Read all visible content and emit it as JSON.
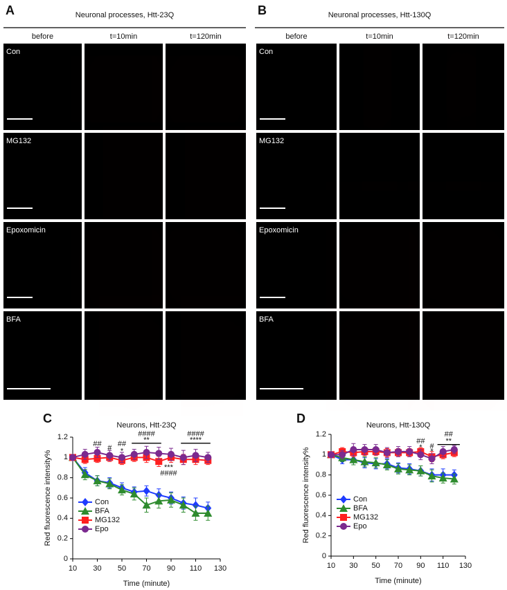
{
  "panels": [
    {
      "label": "A",
      "title": "Neuronal processes, Htt-23Q",
      "columns": [
        "before",
        "t=10min",
        "t=120min"
      ],
      "rows": [
        "Con",
        "MG132",
        "Epoxomicin",
        "BFA"
      ]
    },
    {
      "label": "B",
      "title": "Neuronal processes, Htt-130Q",
      "columns": [
        "before",
        "t=10min",
        "t=120min"
      ],
      "rows": [
        "Con",
        "MG132",
        "Epoxomicin",
        "BFA"
      ]
    }
  ],
  "chart_data": [
    {
      "type": "line",
      "panel_label": "C",
      "title": "Neurons, Htt-23Q",
      "x_label": "Time (minute)",
      "y_label": "Red fluorescence intensity%",
      "x": [
        10,
        20,
        30,
        40,
        50,
        60,
        70,
        80,
        90,
        100,
        110,
        120
      ],
      "series": [
        {
          "name": "Con",
          "color": "#1f3cff",
          "marker": "diamond",
          "values": [
            1,
            0.85,
            0.77,
            0.75,
            0.7,
            0.66,
            0.67,
            0.63,
            0.6,
            0.55,
            0.53,
            0.5
          ],
          "errors": [
            0.02,
            0.05,
            0.05,
            0.05,
            0.05,
            0.05,
            0.05,
            0.06,
            0.06,
            0.06,
            0.07,
            0.06
          ]
        },
        {
          "name": "BFA",
          "color": "#2e8b2e",
          "marker": "triangle",
          "values": [
            1,
            0.83,
            0.77,
            0.74,
            0.68,
            0.64,
            0.53,
            0.57,
            0.58,
            0.53,
            0.45,
            0.45
          ],
          "errors": [
            0.02,
            0.05,
            0.05,
            0.05,
            0.05,
            0.06,
            0.07,
            0.07,
            0.07,
            0.07,
            0.07,
            0.07
          ]
        },
        {
          "name": "MG132",
          "color": "#ff2020",
          "marker": "square",
          "values": [
            1,
            0.98,
            0.99,
            1.0,
            0.97,
            1.0,
            1.0,
            0.96,
            1.0,
            0.98,
            0.98,
            0.97
          ],
          "errors": [
            0.02,
            0.04,
            0.04,
            0.04,
            0.04,
            0.04,
            0.05,
            0.05,
            0.05,
            0.05,
            0.05,
            0.04
          ]
        },
        {
          "name": "Epo",
          "color": "#7b2a8f",
          "marker": "circle",
          "values": [
            1,
            1.03,
            1.05,
            1.02,
            1.0,
            1.03,
            1.05,
            1.04,
            1.03,
            1.0,
            1.02,
            1.0
          ],
          "errors": [
            0.02,
            0.05,
            0.05,
            0.05,
            0.05,
            0.05,
            0.06,
            0.06,
            0.06,
            0.07,
            0.06,
            0.05
          ]
        }
      ],
      "annotations": [
        "##",
        "#",
        "##",
        "*",
        "####",
        "**",
        "***",
        "####",
        "####",
        "****"
      ],
      "xlim": [
        10,
        130
      ],
      "xticks": [
        10,
        30,
        50,
        70,
        90,
        110,
        130
      ],
      "ylim": [
        0,
        1.2
      ],
      "yticks": [
        0,
        0.2,
        0.4,
        0.6,
        0.8,
        1,
        1.2
      ],
      "legend": "lower left"
    },
    {
      "type": "line",
      "panel_label": "D",
      "title": "Neurons, Htt-130Q",
      "x_label": "Time (minute)",
      "y_label": "Red fluorescence intensity%",
      "x": [
        10,
        20,
        30,
        40,
        50,
        60,
        70,
        80,
        90,
        100,
        110,
        120
      ],
      "series": [
        {
          "name": "Con",
          "color": "#1f3cff",
          "marker": "diamond",
          "values": [
            1,
            0.95,
            0.95,
            0.92,
            0.91,
            0.91,
            0.87,
            0.86,
            0.84,
            0.8,
            0.8,
            0.8
          ],
          "errors": [
            0.02,
            0.04,
            0.05,
            0.05,
            0.05,
            0.05,
            0.05,
            0.05,
            0.05,
            0.06,
            0.06,
            0.05
          ]
        },
        {
          "name": "BFA",
          "color": "#2e8b2e",
          "marker": "triangle",
          "values": [
            1,
            0.97,
            0.95,
            0.93,
            0.92,
            0.9,
            0.86,
            0.85,
            0.84,
            0.79,
            0.77,
            0.76
          ],
          "errors": [
            0.02,
            0.04,
            0.05,
            0.05,
            0.05,
            0.05,
            0.05,
            0.05,
            0.05,
            0.06,
            0.05,
            0.05
          ]
        },
        {
          "name": "MG132",
          "color": "#ff2020",
          "marker": "square",
          "values": [
            1,
            1.03,
            1.02,
            1.03,
            1.03,
            1.02,
            1.02,
            1.02,
            1.03,
            0.98,
            1.0,
            1.02
          ],
          "errors": [
            0.02,
            0.04,
            0.04,
            0.04,
            0.04,
            0.04,
            0.04,
            0.04,
            0.04,
            0.05,
            0.04,
            0.04
          ]
        },
        {
          "name": "Epo",
          "color": "#7b2a8f",
          "marker": "circle",
          "values": [
            1,
            1.0,
            1.05,
            1.05,
            1.05,
            1.02,
            1.03,
            1.03,
            1.0,
            0.96,
            1.03,
            1.05
          ],
          "errors": [
            0.02,
            0.04,
            0.06,
            0.05,
            0.05,
            0.05,
            0.05,
            0.05,
            0.05,
            0.05,
            0.05,
            0.04
          ]
        }
      ],
      "annotations": [
        "##",
        "*",
        "#",
        "*",
        "##",
        "**"
      ],
      "xlim": [
        10,
        130
      ],
      "xticks": [
        10,
        30,
        50,
        70,
        90,
        110,
        130
      ],
      "ylim": [
        0,
        1.2
      ],
      "yticks": [
        0,
        0.2,
        0.4,
        0.6,
        0.8,
        1,
        1.2
      ],
      "legend": "lower left"
    }
  ]
}
